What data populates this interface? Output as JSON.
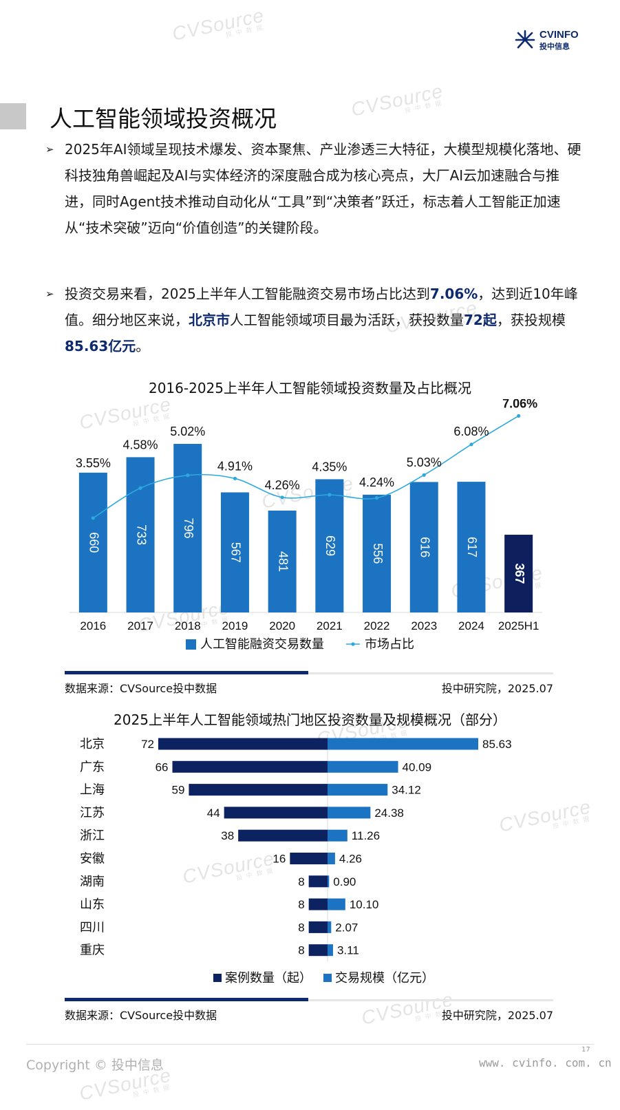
{
  "header": {
    "logo_main": "CVINFO",
    "logo_sub": "投中信息"
  },
  "watermark": {
    "text": "CVSource",
    "sub": "投中数据"
  },
  "page": {
    "title": "人工智能领域投资概况",
    "bullets": [
      {
        "text": "2025年AI领域呈现技术爆发、资本聚焦、产业渗透三大特征，大模型规模化落地、硬科技独角兽崛起及AI与实体经济的深度融合成为核心亮点，大厂AI云加速融合与推进，同时Agent技术推动自动化从“工具”到“决策者”跃迁，标志着人工智能正加速从“技术突破”迈向“价值创造”的关键阶段。"
      },
      {
        "p1": "投资交易来看，2025上半年人工智能融资交易市场占比达到",
        "h1": "7.06%",
        "p2": "，达到近10年峰值。细分地区来说，",
        "h2": "北京市",
        "p3": "人工智能领域项目最为活跃，获投数量",
        "h3": "72起",
        "p4": "，获投规模",
        "h4": "85.63亿元",
        "p5": "。"
      }
    ],
    "footer": {
      "copyright": "Copyright © 投中信息",
      "website": "www. cvinfo. com. cn",
      "page_number": "17"
    }
  },
  "chart_data": [
    {
      "type": "bar",
      "title": "2016-2025上半年人工智能领域投资数量及占比概况",
      "categories": [
        "2016",
        "2017",
        "2018",
        "2019",
        "2020",
        "2021",
        "2022",
        "2023",
        "2024",
        "2025H1"
      ],
      "series": [
        {
          "name": "人工智能融资交易数量",
          "type": "bar",
          "values": [
            660,
            733,
            796,
            567,
            481,
            629,
            556,
            616,
            617,
            367
          ],
          "color": "#1b73c1",
          "highlight_color": "#0d1f5c"
        },
        {
          "name": "市场占比",
          "type": "line",
          "values": [
            3.55,
            4.58,
            5.02,
            4.91,
            4.26,
            4.35,
            4.24,
            5.03,
            6.08,
            7.06
          ],
          "labels": [
            "",
            "4.58%",
            "5.02%",
            "4.91%",
            "4.26%",
            "4.35%",
            "4.24%",
            "5.03%",
            "6.08%",
            "7.06%"
          ],
          "color": "#2ea9dd"
        }
      ],
      "bar_top_labels": [
        "3.55%",
        "",
        "",
        "",
        "",
        "",
        "",
        "",
        "",
        ""
      ],
      "ylim_bar": [
        0,
        900
      ],
      "ylim_line": [
        0,
        8
      ],
      "legend": "bottom",
      "source": "数据来源：CVSource投中数据",
      "credit": "投中研究院，2025.07"
    },
    {
      "type": "bar",
      "orientation": "horizontal",
      "title": "2025上半年人工智能领域热门地区投资数量及规模概况（部分）",
      "categories": [
        "北京",
        "广东",
        "上海",
        "江苏",
        "浙江",
        "安徽",
        "湖南",
        "山东",
        "四川",
        "重庆"
      ],
      "series": [
        {
          "name": "案例数量（起）",
          "values": [
            72,
            66,
            59,
            44,
            38,
            16,
            8,
            8,
            8,
            8
          ],
          "labels": [
            "72",
            "66",
            "59",
            "44",
            "38",
            "16",
            "8",
            "8",
            "8",
            "8"
          ],
          "color": "#0d2260"
        },
        {
          "name": "交易规模（亿元）",
          "values": [
            85.63,
            40.09,
            34.12,
            24.38,
            11.26,
            4.26,
            0.9,
            10.1,
            2.07,
            3.11
          ],
          "labels": [
            "85.63",
            "40.09",
            "34.12",
            "24.38",
            "11.26",
            "4.26",
            "0.90",
            "10.10",
            "2.07",
            "3.11"
          ],
          "color": "#1b73c1"
        }
      ],
      "legend": "bottom",
      "source": "数据来源：CVSource投中数据",
      "credit": "投中研究院，2025.07"
    }
  ]
}
